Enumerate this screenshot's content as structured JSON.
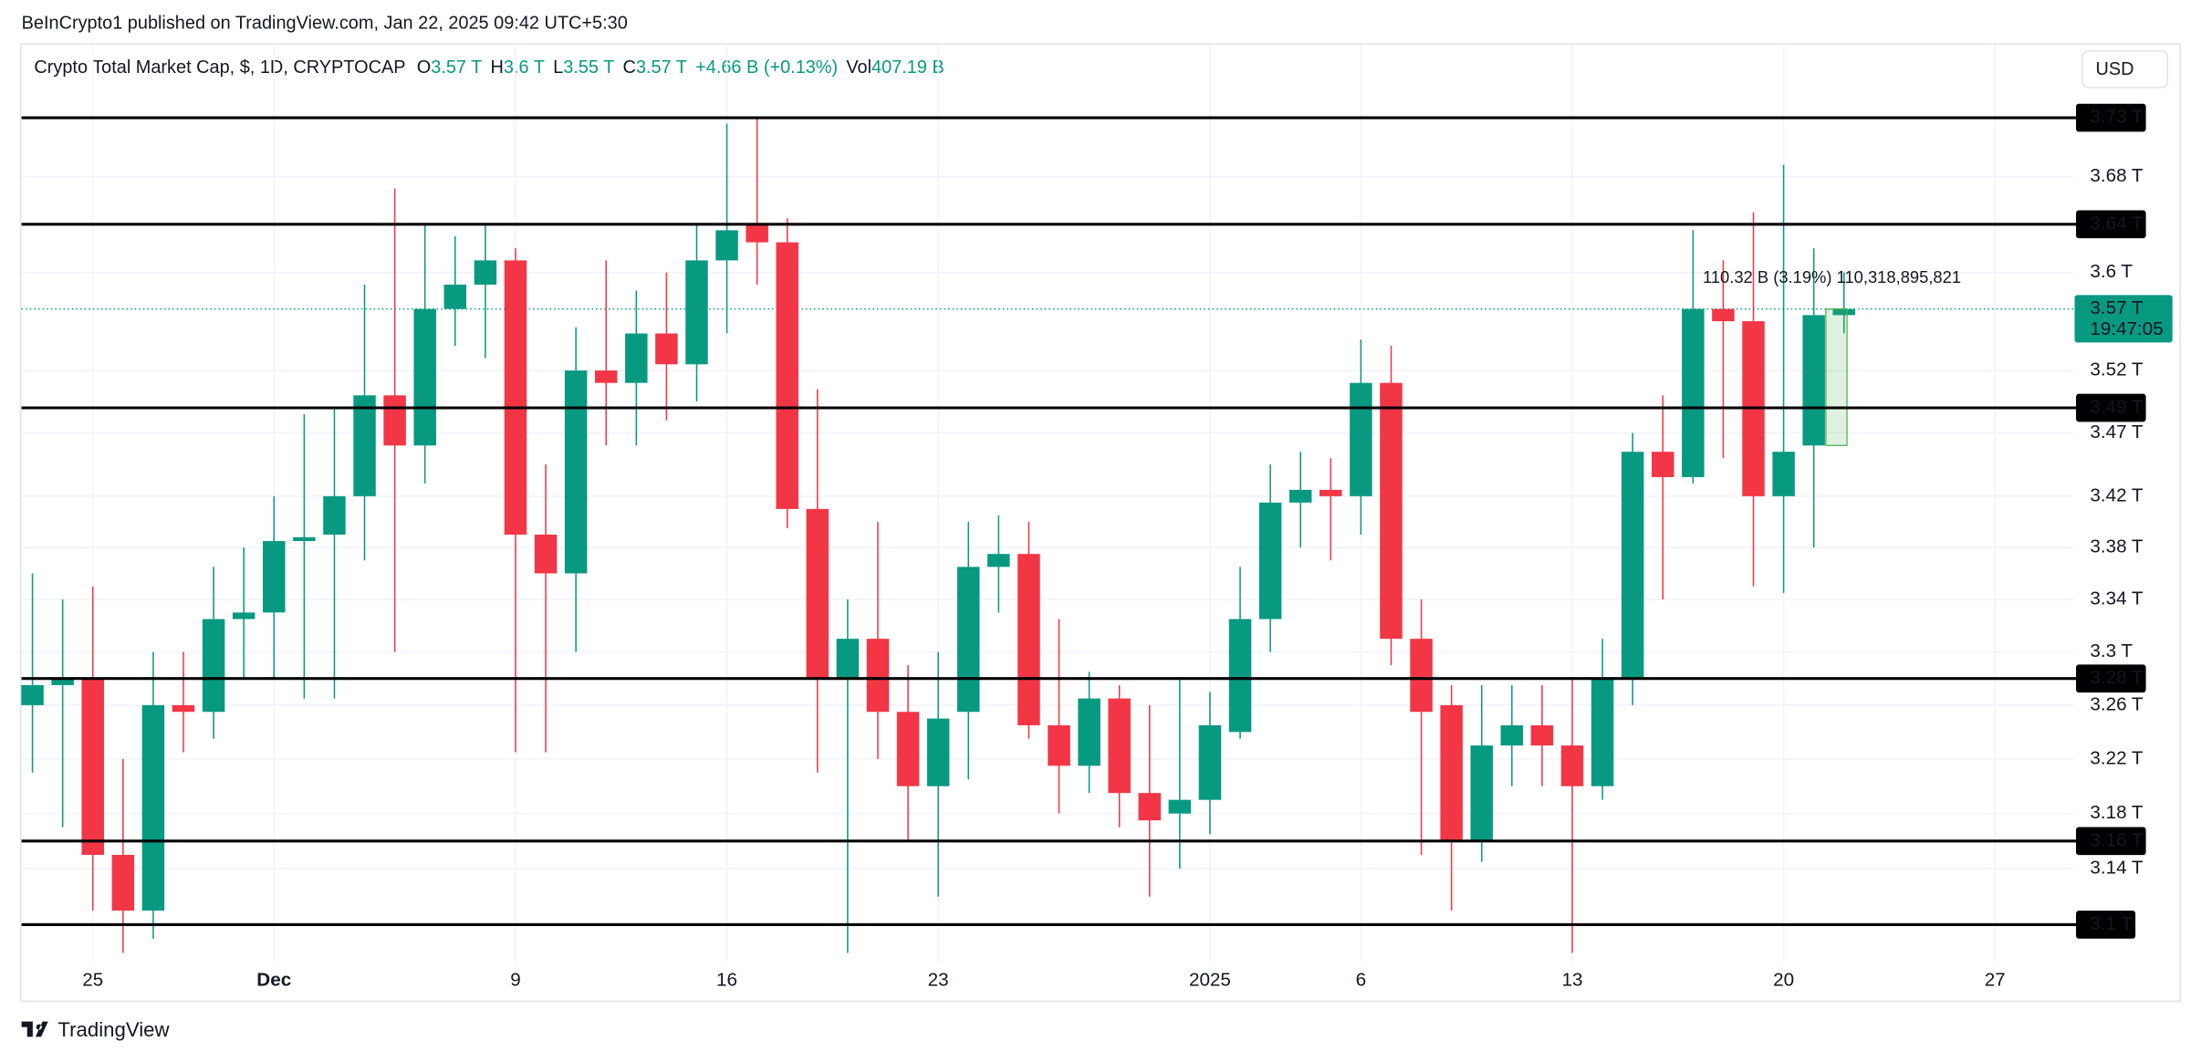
{
  "chart_data": {
    "type": "candlestick",
    "header": "BeInCrypto1 published on TradingView.com, Jan 22, 2025 09:42 UTC+5:30",
    "title": "Crypto Total Market Cap, $, 1D, CRYPTOCAP",
    "legend": [
      {
        "key": "O",
        "value": "3.57 T"
      },
      {
        "key": "H",
        "value": "3.6 T"
      },
      {
        "key": "L",
        "value": "3.55 T"
      },
      {
        "key": "C",
        "value": "3.57 T"
      }
    ],
    "change": "+4.66 B (+0.13%)",
    "volume": {
      "key": "Vol",
      "value": "407.19 B"
    },
    "currency": "USD",
    "footer": "TradingView",
    "up_color": "#089981",
    "down_color": "#f23645",
    "log_scale": true,
    "grid": true,
    "categories": [
      null,
      null,
      "25",
      null,
      null,
      null,
      null,
      null,
      "Dec",
      null,
      null,
      null,
      null,
      null,
      null,
      null,
      "9",
      null,
      null,
      null,
      null,
      null,
      null,
      "16",
      null,
      null,
      null,
      null,
      null,
      null,
      "23",
      null,
      null,
      null,
      null,
      null,
      null,
      null,
      null,
      "2025",
      null,
      null,
      null,
      null,
      "6",
      null,
      null,
      null,
      null,
      null,
      null,
      "13",
      null,
      null,
      null,
      null,
      null,
      null,
      "20",
      null,
      null,
      null,
      null,
      null,
      null,
      "27",
      null,
      null
    ],
    "series": [
      {
        "name": "open",
        "values": [
          3.26,
          3.275,
          3.28,
          3.15,
          3.11,
          3.26,
          3.255,
          3.325,
          3.33,
          3.385,
          3.39,
          3.42,
          3.5,
          3.46,
          3.57,
          3.59,
          3.61,
          3.39,
          3.36,
          3.52,
          3.51,
          3.55,
          3.525,
          3.61,
          3.64,
          3.625,
          3.41,
          3.28,
          3.31,
          3.255,
          3.2,
          3.255,
          3.365,
          3.375,
          3.245,
          3.215,
          3.265,
          3.195,
          3.18,
          3.19,
          3.24,
          3.325,
          3.415,
          3.425,
          3.42,
          3.51,
          3.31,
          3.26,
          3.16,
          3.23,
          3.245,
          3.23,
          3.2,
          3.28,
          3.455,
          3.435,
          3.57,
          3.56,
          3.42,
          3.46,
          3.565,
          null,
          null,
          null,
          null,
          null,
          null,
          null
        ]
      },
      {
        "name": "high",
        "values": [
          3.36,
          3.34,
          3.35,
          3.22,
          3.3,
          3.3,
          3.365,
          3.38,
          3.42,
          3.485,
          3.49,
          3.59,
          3.67,
          3.64,
          3.63,
          3.64,
          3.62,
          3.445,
          3.555,
          3.61,
          3.585,
          3.6,
          3.64,
          3.725,
          3.73,
          3.645,
          3.505,
          3.34,
          3.4,
          3.29,
          3.3,
          3.4,
          3.405,
          3.4,
          3.325,
          3.285,
          3.275,
          3.26,
          3.28,
          3.27,
          3.365,
          3.445,
          3.455,
          3.45,
          3.545,
          3.54,
          3.34,
          3.275,
          3.275,
          3.275,
          3.275,
          3.28,
          3.31,
          3.47,
          3.5,
          3.635,
          3.61,
          3.65,
          3.69,
          3.62,
          3.6,
          null,
          null,
          null,
          null,
          null,
          null,
          null
        ]
      },
      {
        "name": "low",
        "values": [
          3.21,
          3.17,
          3.11,
          3.08,
          3.09,
          3.225,
          3.235,
          3.28,
          3.28,
          3.265,
          3.265,
          3.37,
          3.3,
          3.43,
          3.54,
          3.53,
          3.225,
          3.225,
          3.3,
          3.46,
          3.46,
          3.48,
          3.495,
          3.55,
          3.59,
          3.395,
          3.21,
          3.08,
          3.22,
          3.16,
          3.12,
          3.205,
          3.33,
          3.235,
          3.18,
          3.195,
          3.17,
          3.12,
          3.14,
          3.165,
          3.235,
          3.3,
          3.38,
          3.37,
          3.39,
          3.29,
          3.15,
          3.11,
          3.145,
          3.2,
          3.2,
          3.08,
          3.19,
          3.26,
          3.34,
          3.43,
          3.45,
          3.35,
          3.345,
          3.38,
          3.55,
          null,
          null,
          null,
          null,
          null,
          null,
          null
        ]
      },
      {
        "name": "close",
        "values": [
          3.275,
          3.28,
          3.15,
          3.11,
          3.26,
          3.255,
          3.325,
          3.33,
          3.385,
          3.388,
          3.42,
          3.5,
          3.46,
          3.57,
          3.59,
          3.61,
          3.39,
          3.36,
          3.52,
          3.51,
          3.55,
          3.525,
          3.61,
          3.635,
          3.625,
          3.41,
          3.28,
          3.31,
          3.255,
          3.2,
          3.25,
          3.365,
          3.375,
          3.245,
          3.215,
          3.265,
          3.195,
          3.175,
          3.19,
          3.245,
          3.325,
          3.415,
          3.425,
          3.42,
          3.51,
          3.31,
          3.255,
          3.16,
          3.23,
          3.245,
          3.23,
          3.2,
          3.28,
          3.455,
          3.435,
          3.57,
          3.56,
          3.42,
          3.455,
          3.565,
          3.57,
          null,
          null,
          null,
          null,
          null,
          null,
          null
        ]
      }
    ],
    "ylim": [
      3.074,
      3.793
    ],
    "yticks": [
      {
        "value": 3.68,
        "label": "3.68 T"
      },
      {
        "value": 3.6,
        "label": "3.6 T"
      },
      {
        "value": 3.52,
        "label": "3.52 T"
      },
      {
        "value": 3.47,
        "label": "3.47 T"
      },
      {
        "value": 3.42,
        "label": "3.42 T"
      },
      {
        "value": 3.38,
        "label": "3.38 T"
      },
      {
        "value": 3.34,
        "label": "3.34 T"
      },
      {
        "value": 3.3,
        "label": "3.3 T"
      },
      {
        "value": 3.26,
        "label": "3.26 T"
      },
      {
        "value": 3.22,
        "label": "3.22 T"
      },
      {
        "value": 3.18,
        "label": "3.18 T"
      },
      {
        "value": 3.14,
        "label": "3.14 T"
      }
    ],
    "levels": [
      {
        "value": 3.73,
        "label": "3.73 T"
      },
      {
        "value": 3.64,
        "label": "3.64 T"
      },
      {
        "value": 3.49,
        "label": "3.49 T"
      },
      {
        "value": 3.28,
        "label": "3.28 T"
      },
      {
        "value": 3.16,
        "label": "3.16 T"
      },
      {
        "value": 3.1,
        "label": "3.1 T"
      }
    ],
    "last_price": {
      "value": 3.57,
      "label": "3.57 T",
      "countdown": "19:47:05"
    },
    "measure": {
      "from": 3.46,
      "to": 3.57,
      "label": "110.32 B (3.19%) 110,318,895,821"
    }
  }
}
